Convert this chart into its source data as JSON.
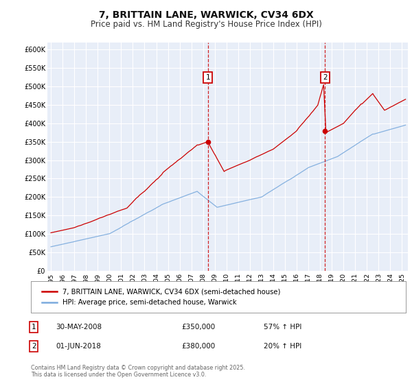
{
  "title": "7, BRITTAIN LANE, WARWICK, CV34 6DX",
  "subtitle": "Price paid vs. HM Land Registry's House Price Index (HPI)",
  "title_fontsize": 10,
  "subtitle_fontsize": 8.5,
  "bg_color": "#ffffff",
  "plot_bg_color": "#e8eef8",
  "grid_color": "#ffffff",
  "ylim": [
    0,
    620000
  ],
  "yticks": [
    0,
    50000,
    100000,
    150000,
    200000,
    250000,
    300000,
    350000,
    400000,
    450000,
    500000,
    550000,
    600000
  ],
  "ytick_labels": [
    "£0",
    "£50K",
    "£100K",
    "£150K",
    "£200K",
    "£250K",
    "£300K",
    "£350K",
    "£400K",
    "£450K",
    "£500K",
    "£550K",
    "£600K"
  ],
  "xlim_start": 1994.7,
  "xlim_end": 2025.5,
  "xtick_years": [
    1995,
    1996,
    1997,
    1998,
    1999,
    2000,
    2001,
    2002,
    2003,
    2004,
    2005,
    2006,
    2007,
    2008,
    2009,
    2010,
    2011,
    2012,
    2013,
    2014,
    2015,
    2016,
    2017,
    2018,
    2019,
    2020,
    2021,
    2022,
    2023,
    2024,
    2025
  ],
  "marker1_x": 2008.41,
  "marker1_y": 350000,
  "marker1_label": "1",
  "marker2_x": 2018.42,
  "marker2_y": 380000,
  "marker2_label": "2",
  "vline1_x": 2008.41,
  "vline2_x": 2018.42,
  "red_line_color": "#cc0000",
  "blue_line_color": "#7aaadd",
  "legend_label_red": "7, BRITTAIN LANE, WARWICK, CV34 6DX (semi-detached house)",
  "legend_label_blue": "HPI: Average price, semi-detached house, Warwick",
  "note1_num": "1",
  "note1_date": "30-MAY-2008",
  "note1_price": "£350,000",
  "note1_pct": "57% ↑ HPI",
  "note2_num": "2",
  "note2_date": "01-JUN-2018",
  "note2_price": "£380,000",
  "note2_pct": "20% ↑ HPI",
  "footer": "Contains HM Land Registry data © Crown copyright and database right 2025.\nThis data is licensed under the Open Government Licence v3.0."
}
